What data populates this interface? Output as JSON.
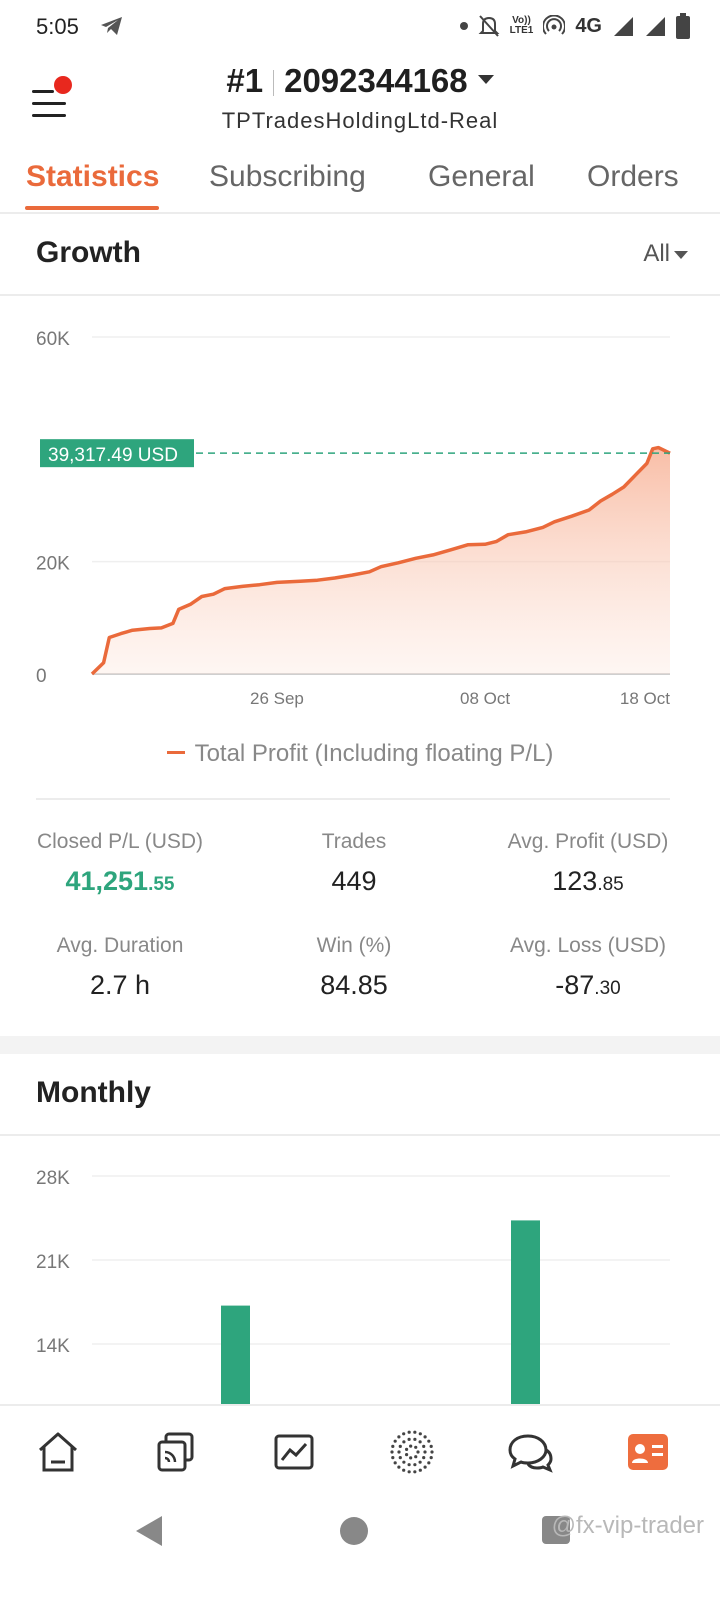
{
  "status_bar": {
    "time": "5:05",
    "network": "4G",
    "volte_top": "Vo))",
    "volte_bottom": "LTE1",
    "icons": [
      "telegram-icon",
      "dot-icon",
      "mute-bell-icon",
      "volte-icon",
      "hotspot-icon",
      "signal-icon",
      "signal-icon",
      "battery-icon"
    ]
  },
  "header": {
    "account_number": "#1",
    "account_id": "2092344168",
    "broker_server": "TPTradesHoldingLtd-Real"
  },
  "tabs": [
    {
      "label": "Statistics",
      "active": true
    },
    {
      "label": "Subscribing",
      "active": false
    },
    {
      "label": "General",
      "active": false
    },
    {
      "label": "Orders",
      "active": false
    }
  ],
  "growth": {
    "title": "Growth",
    "range": "All",
    "current_value_label": "39,317.49 USD",
    "legend": "Total Profit (Including floating P/L)"
  },
  "stats": {
    "closed_pl": {
      "label": "Closed P/L (USD)",
      "int": "41,251",
      "dec": ".55"
    },
    "trades": {
      "label": "Trades",
      "value": "449"
    },
    "avg_profit": {
      "label": "Avg. Profit (USD)",
      "int": "123",
      "dec": ".85"
    },
    "avg_duration": {
      "label": "Avg. Duration",
      "value": "2.7 h"
    },
    "win": {
      "label": "Win (%)",
      "value": "84.85"
    },
    "avg_loss": {
      "label": "Avg. Loss (USD)",
      "int": "-87",
      "dec": ".30"
    }
  },
  "monthly": {
    "title": "Monthly"
  },
  "bottom_nav": [
    {
      "icon": "home-icon"
    },
    {
      "icon": "copy-signal-icon"
    },
    {
      "icon": "chart-icon"
    },
    {
      "icon": "globe-dots-icon"
    },
    {
      "icon": "chat-icon"
    },
    {
      "icon": "profile-card-icon",
      "active": true
    }
  ],
  "watermark": "@fx-vip-trader",
  "colors": {
    "accent": "#ea6a3b",
    "profit_green": "#2ea57d",
    "menu_badge": "#e8281e"
  },
  "chart_data": [
    {
      "type": "area",
      "ylim": [
        0,
        60000
      ],
      "y_ticks": [
        "0",
        "20K",
        "60K"
      ],
      "x_tick_labels": [
        "26 Sep",
        "08 Oct",
        "18 Oct"
      ],
      "legend_position": "bottom",
      "grid": true,
      "series": [
        {
          "name": "Total Profit (Including floating P/L)",
          "points": [
            [
              0.0,
              0
            ],
            [
              0.02,
              2000
            ],
            [
              0.03,
              6500
            ],
            [
              0.05,
              7200
            ],
            [
              0.07,
              7800
            ],
            [
              0.1,
              8100
            ],
            [
              0.12,
              8200
            ],
            [
              0.14,
              9000
            ],
            [
              0.15,
              11500
            ],
            [
              0.17,
              12400
            ],
            [
              0.19,
              13800
            ],
            [
              0.21,
              14200
            ],
            [
              0.23,
              15200
            ],
            [
              0.26,
              15600
            ],
            [
              0.29,
              15900
            ],
            [
              0.32,
              16300
            ],
            [
              0.36,
              16500
            ],
            [
              0.39,
              16700
            ],
            [
              0.42,
              17100
            ],
            [
              0.45,
              17600
            ],
            [
              0.48,
              18200
            ],
            [
              0.5,
              19100
            ],
            [
              0.53,
              19800
            ],
            [
              0.56,
              20600
            ],
            [
              0.59,
              21200
            ],
            [
              0.62,
              22100
            ],
            [
              0.65,
              23000
            ],
            [
              0.68,
              23100
            ],
            [
              0.7,
              23600
            ],
            [
              0.72,
              24800
            ],
            [
              0.75,
              25300
            ],
            [
              0.78,
              26100
            ],
            [
              0.8,
              27100
            ],
            [
              0.83,
              28100
            ],
            [
              0.86,
              29200
            ],
            [
              0.88,
              30800
            ],
            [
              0.9,
              32000
            ],
            [
              0.92,
              33300
            ],
            [
              0.94,
              35400
            ],
            [
              0.96,
              37500
            ],
            [
              0.97,
              40100
            ],
            [
              0.98,
              40300
            ],
            [
              1.0,
              39317.49
            ]
          ]
        }
      ],
      "current_value": 39317.49
    },
    {
      "type": "bar",
      "y_ticks": [
        "14K",
        "21K",
        "28K"
      ],
      "ylim": [
        7000,
        28000
      ],
      "series": [
        {
          "values": [
            17200,
            24300
          ]
        }
      ]
    }
  ]
}
